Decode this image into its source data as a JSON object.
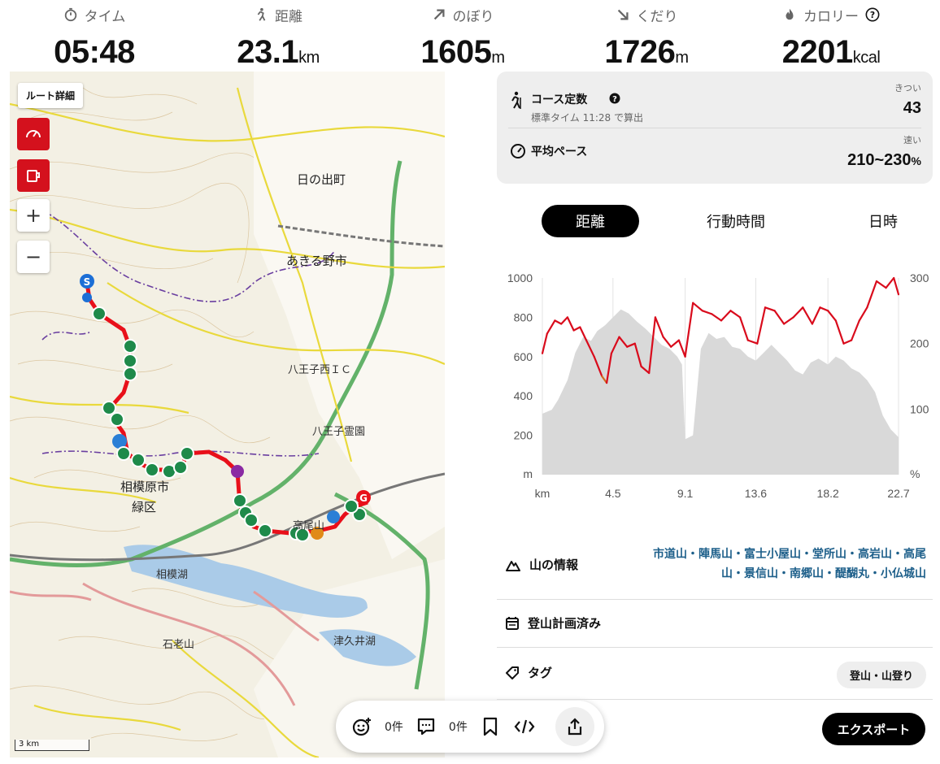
{
  "stats": [
    {
      "label": "タイム",
      "value": "05:48",
      "unit": "",
      "icon": "stopwatch-icon"
    },
    {
      "label": "距離",
      "value": "23.1",
      "unit": "km",
      "icon": "hiker-icon"
    },
    {
      "label": "のぼり",
      "value": "1605",
      "unit": "m",
      "icon": "arrow-up-right-icon"
    },
    {
      "label": "くだり",
      "value": "1726",
      "unit": "m",
      "icon": "arrow-down-right-icon"
    },
    {
      "label": "カロリー",
      "value": "2201",
      "unit": "kcal",
      "icon": "flame-icon"
    }
  ],
  "map": {
    "route_detail_button": "ルート詳細",
    "zoom_in": "+",
    "zoom_out": "−",
    "scale": "3 km",
    "labels": {
      "hinodemachi": "日の出町",
      "akirunoshi": "あきる野市",
      "sagamiharashi": "相模原市",
      "midoriku": "緑区",
      "sagamiko": "相模湖",
      "ishiroyama": "石老山",
      "tsukuiko": "津久井湖",
      "hachiojinishi": "八王子西ＩＣ",
      "hachiojireien": "八王子霊園",
      "takaosan": "高尾山"
    }
  },
  "actions": {
    "like_count": "0件",
    "comment_count": "0件"
  },
  "course": {
    "title": "コース定数",
    "subtitle": "標準タイム 11:28 で算出",
    "difficulty_tag": "きつい",
    "difficulty_value": "43",
    "pace_title": "平均ペース",
    "pace_tag": "速い",
    "pace_value": "210~230",
    "pace_unit": "%"
  },
  "tabs": [
    "距離",
    "行動時間",
    "日時"
  ],
  "chart_data": {
    "type": "area",
    "x_ticks": [
      "km",
      "4.5",
      "9.1",
      "13.6",
      "18.2",
      "22.7"
    ],
    "y_left_ticks": [
      "1000",
      "800",
      "600",
      "400",
      "200",
      "m"
    ],
    "y_right_ticks": [
      "300",
      "200",
      "100",
      "%"
    ],
    "ylim_left": [
      0,
      1000
    ],
    "ylim_right": [
      0,
      300
    ],
    "xlim": [
      0,
      22.7
    ],
    "elevation_series": {
      "name": "",
      "x": [
        0,
        0.6,
        1.0,
        1.6,
        2.1,
        2.6,
        3.1,
        3.5,
        4.0,
        4.5,
        5.0,
        5.5,
        6.0,
        6.6,
        7.1,
        7.6,
        8.1,
        8.6,
        8.9,
        9.1,
        9.6,
        10.1,
        10.6,
        11.1,
        11.6,
        12.1,
        12.6,
        13.1,
        13.6,
        14.1,
        14.6,
        15.1,
        15.6,
        16.1,
        16.6,
        17.1,
        17.6,
        18.2,
        18.7,
        19.2,
        19.7,
        20.2,
        20.7,
        21.2,
        21.7,
        22.2,
        22.7
      ],
      "values": [
        310,
        330,
        380,
        480,
        620,
        700,
        680,
        730,
        760,
        800,
        840,
        820,
        780,
        740,
        700,
        660,
        640,
        600,
        560,
        180,
        200,
        640,
        720,
        690,
        700,
        650,
        640,
        600,
        580,
        620,
        660,
        620,
        580,
        530,
        510,
        570,
        590,
        560,
        600,
        580,
        540,
        520,
        480,
        420,
        300,
        230,
        190
      ]
    },
    "pace_series": {
      "name": "",
      "x": [
        0,
        0.3,
        0.8,
        1.2,
        1.6,
        2.0,
        2.4,
        2.8,
        3.3,
        3.8,
        4.1,
        4.4,
        4.9,
        5.4,
        5.9,
        6.3,
        6.8,
        7.2,
        7.7,
        8.2,
        8.7,
        9.1,
        9.6,
        10.2,
        10.8,
        11.4,
        12.0,
        12.6,
        13.1,
        13.7,
        14.2,
        14.8,
        15.4,
        16.0,
        16.6,
        17.2,
        17.7,
        18.2,
        18.7,
        19.2,
        19.7,
        20.2,
        20.7,
        21.3,
        21.9,
        22.4,
        22.7
      ],
      "values": [
        185,
        215,
        235,
        230,
        240,
        220,
        225,
        205,
        180,
        150,
        140,
        185,
        210,
        195,
        200,
        165,
        155,
        240,
        210,
        195,
        205,
        180,
        262,
        250,
        245,
        235,
        250,
        240,
        205,
        200,
        255,
        250,
        230,
        240,
        255,
        230,
        255,
        250,
        235,
        200,
        205,
        235,
        255,
        295,
        285,
        300,
        275
      ]
    }
  },
  "info": {
    "mountain_label": "山の情報",
    "peaks_line1": "市道山・陣馬山・富士小屋山・堂所山・高岩山・高尾",
    "peaks_line2": "山・景信山・南郷山・醍醐丸・小仏城山",
    "plan_label": "登山計画済み",
    "tag_label": "タグ",
    "tag_value": "登山・山登り",
    "export_label": "エクスポート"
  },
  "colors": {
    "accent_red": "#d4111d",
    "peak_link": "#1d5f8a",
    "pace_line": "#d90b1c",
    "pace_slow": "#d2691e",
    "elevation_fill": "#d9d9d9"
  }
}
